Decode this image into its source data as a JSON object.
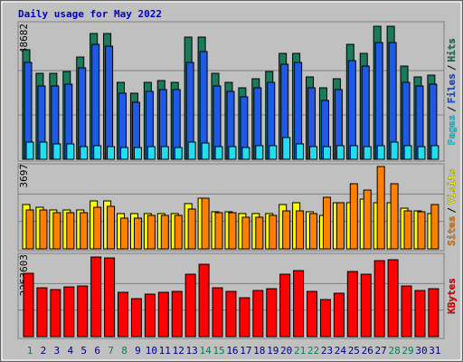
{
  "legend_separator": "/",
  "chart_data": [
    {
      "type": "bar",
      "title": "Daily usage for May 2022",
      "ylim": [
        0,
        48682
      ],
      "yticks": [
        48682
      ],
      "series": [
        {
          "name": "Hits",
          "color": "#1a7a5c",
          "values": [
            40075,
            31460,
            31460,
            32120,
            37420,
            46030,
            46030,
            28150,
            24170,
            28150,
            28810,
            28150,
            44710,
            44710,
            31460,
            28150,
            26160,
            29470,
            32120,
            38750,
            38750,
            30140,
            26160,
            29470,
            42060,
            38750,
            48682,
            48682,
            34110,
            30140,
            30800
          ]
        },
        {
          "name": "Files",
          "color": "#1e5ae6",
          "values": [
            35440,
            26830,
            26830,
            27490,
            33450,
            42060,
            41400,
            24180,
            20870,
            24840,
            25500,
            25500,
            35440,
            39410,
            26830,
            24840,
            22850,
            26160,
            28150,
            34780,
            35440,
            26160,
            21530,
            25500,
            36100,
            34110,
            42720,
            42720,
            28150,
            26830,
            27490
          ]
        },
        {
          "name": "Pages",
          "color": "#22dcf0",
          "values": [
            6290,
            6290,
            5630,
            5630,
            4640,
            4970,
            4640,
            4310,
            4310,
            4640,
            4640,
            4310,
            6290,
            5960,
            4640,
            4640,
            4310,
            4970,
            4970,
            7950,
            5630,
            4640,
            4640,
            4970,
            4970,
            4640,
            4970,
            6290,
            4970,
            4640,
            4970
          ]
        }
      ]
    },
    {
      "type": "bar",
      "ylim": [
        0,
        3697
      ],
      "yticks": [
        3697
      ],
      "series": [
        {
          "name": "Visits",
          "color": "#ffff00",
          "values": [
            1991,
            1869,
            1747,
            1747,
            1747,
            2153,
            2153,
            1585,
            1585,
            1585,
            1585,
            1585,
            2032,
            2275,
            1666,
            1666,
            1585,
            1585,
            1585,
            1991,
            2072,
            1666,
            1503,
            2072,
            2072,
            2235,
            2072,
            2072,
            1828,
            1706,
            1585
          ]
        },
        {
          "name": "Sites",
          "color": "#ff8000",
          "values": [
            1747,
            1747,
            1625,
            1625,
            1625,
            1869,
            1910,
            1381,
            1381,
            1503,
            1503,
            1503,
            1788,
            2275,
            1625,
            1625,
            1422,
            1422,
            1503,
            1706,
            1706,
            1585,
            2316,
            2072,
            2925,
            2641,
            3697,
            2925,
            1706,
            1666,
            1991
          ]
        }
      ]
    },
    {
      "type": "bar",
      "ylim": [
        0,
        2263603
      ],
      "yticks": [
        2263603
      ],
      "categories": [
        "1",
        "2",
        "3",
        "4",
        "5",
        "6",
        "7",
        "8",
        "9",
        "10",
        "11",
        "12",
        "13",
        "14",
        "15",
        "16",
        "17",
        "18",
        "19",
        "20",
        "21",
        "22",
        "23",
        "24",
        "25",
        "26",
        "27",
        "28",
        "29",
        "30",
        "31"
      ],
      "category_colors": [
        "#00805c",
        "#000080",
        "#000080",
        "#000080",
        "#000080",
        "#000080",
        "#00805c",
        "#00805c",
        "#000080",
        "#000080",
        "#000080",
        "#000080",
        "#000080",
        "#00805c",
        "#00805c",
        "#000080",
        "#000080",
        "#000080",
        "#000080",
        "#000080",
        "#00805c",
        "#00805c",
        "#000080",
        "#000080",
        "#000080",
        "#000080",
        "#000080",
        "#00805c",
        "#00805c",
        "#000080",
        "#000080"
      ],
      "series": [
        {
          "name": "KBytes",
          "color": "#ff0000",
          "values": [
            1800600,
            1389000,
            1337600,
            1414800,
            1440500,
            2263603,
            2237900,
            1260400,
            1080400,
            1209000,
            1260400,
            1286200,
            1774900,
            2057800,
            1389000,
            1286200,
            1106100,
            1311900,
            1363300,
            1774900,
            1877800,
            1286200,
            1054600,
            1234700,
            1852100,
            1774900,
            2160700,
            2186500,
            1440500,
            1311900,
            1363300
          ]
        }
      ]
    }
  ]
}
